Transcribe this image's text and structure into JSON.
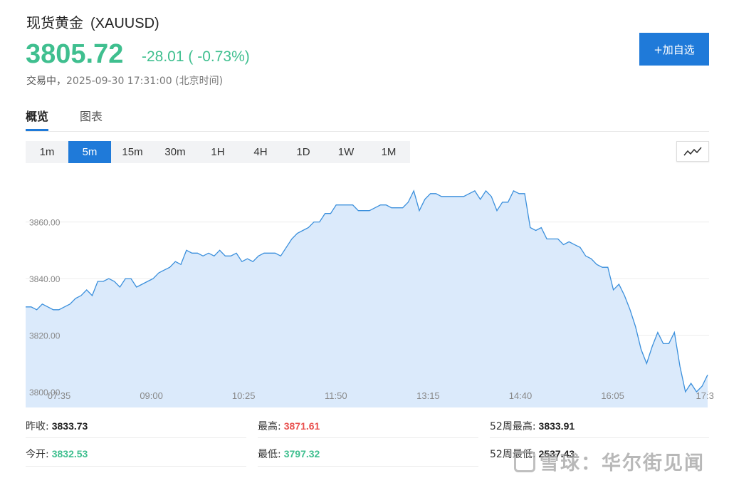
{
  "header": {
    "name": "现货黄金",
    "code": "(XAUUSD)",
    "price": "3805.72",
    "change": "-28.01 ( -0.73%)",
    "status": "交易中，",
    "datetime": "2025-09-30 17:31:00",
    "timezone": "(北京时间)",
    "add_button": "+加自选"
  },
  "colors": {
    "up": "#e9514f",
    "down": "#3fbf8f",
    "accent": "#1f7ad9",
    "line": "#3a8fdc",
    "area": "#dbeafb"
  },
  "tabs": [
    {
      "label": "概览",
      "active": true
    },
    {
      "label": "图表",
      "active": false
    }
  ],
  "periods": [
    {
      "label": "1m",
      "active": false
    },
    {
      "label": "5m",
      "active": true
    },
    {
      "label": "15m",
      "active": false
    },
    {
      "label": "30m",
      "active": false
    },
    {
      "label": "1H",
      "active": false
    },
    {
      "label": "4H",
      "active": false
    },
    {
      "label": "1D",
      "active": false
    },
    {
      "label": "1W",
      "active": false
    },
    {
      "label": "1M",
      "active": false
    }
  ],
  "chart_type_icon": "line-chart-icon",
  "chart_data": {
    "type": "area",
    "x_ticks": [
      "07:35",
      "09:00",
      "10:25",
      "11:50",
      "13:15",
      "14:40",
      "16:05",
      "17:3"
    ],
    "y_ticks": [
      "3800.00",
      "3820.00",
      "3840.00",
      "3860.00"
    ],
    "ylim": [
      3800,
      3876
    ],
    "grid": true,
    "values": [
      3830,
      3830,
      3829,
      3831,
      3830,
      3829,
      3829,
      3830,
      3831,
      3833,
      3834,
      3836,
      3834,
      3839,
      3839,
      3840,
      3839,
      3837,
      3840,
      3840,
      3837,
      3838,
      3839,
      3840,
      3842,
      3843,
      3844,
      3846,
      3845,
      3850,
      3849,
      3849,
      3848,
      3849,
      3848,
      3850,
      3848,
      3848,
      3849,
      3846,
      3847,
      3846,
      3848,
      3849,
      3849,
      3849,
      3848,
      3851,
      3854,
      3856,
      3857,
      3858,
      3860,
      3860,
      3863,
      3863,
      3866,
      3866,
      3866,
      3866,
      3864,
      3864,
      3864,
      3865,
      3866,
      3866,
      3865,
      3865,
      3865,
      3867,
      3871,
      3864,
      3868,
      3870,
      3870,
      3869,
      3869,
      3869,
      3869,
      3869,
      3870,
      3871,
      3868,
      3871,
      3869,
      3864,
      3867,
      3867,
      3871,
      3870,
      3870,
      3858,
      3857,
      3858,
      3854,
      3854,
      3854,
      3852,
      3853,
      3852,
      3851,
      3848,
      3847,
      3845,
      3844,
      3844,
      3836,
      3838,
      3834,
      3829,
      3823,
      3815,
      3810,
      3816,
      3821,
      3817,
      3817,
      3821,
      3809,
      3800,
      3803,
      3800,
      3802,
      3806
    ]
  },
  "stats": {
    "prev_close": {
      "label": "昨收:",
      "value": "3833.73"
    },
    "open": {
      "label": "今开:",
      "value": "3832.53"
    },
    "high": {
      "label": "最高:",
      "value": "3871.61"
    },
    "low": {
      "label": "最低:",
      "value": "3797.32"
    },
    "week52_high": {
      "label": "52周最高:",
      "value": "3833.91"
    },
    "week52_low": {
      "label": "52周最低:",
      "value": "2537.43"
    }
  },
  "watermark": "雪球：华尔街见闻"
}
